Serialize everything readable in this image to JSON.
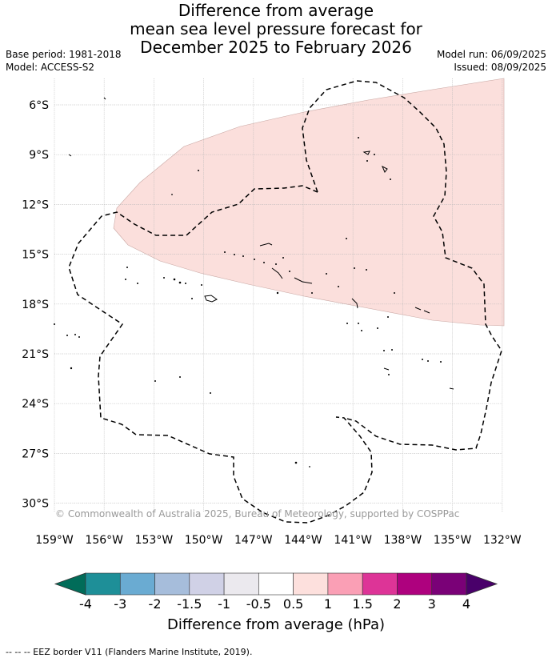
{
  "title": {
    "line1": "Difference from average",
    "line2": "mean sea level pressure forecast for",
    "line3": "December 2025 to February 2026"
  },
  "meta": {
    "base_period": "Base period: 1981-2018",
    "model": "Model: ACCESS-S2",
    "model_run": "Model run: 06/09/2025",
    "issued": "Issued: 08/09/2025"
  },
  "map": {
    "lat_labels": [
      "6°S",
      "9°S",
      "12°S",
      "15°S",
      "18°S",
      "21°S",
      "24°S",
      "27°S",
      "30°S"
    ],
    "lon_labels": [
      "159°W",
      "156°W",
      "153°W",
      "150°W",
      "147°W",
      "144°W",
      "141°W",
      "138°W",
      "135°W",
      "132°W"
    ],
    "copyright": "© Commonwealth of Australia 2025, Bureau of Meteorology, supported by COSPPac",
    "anomaly_region_category": "0.5 to 1",
    "anomaly_color": "#fbdfdc",
    "eez_color": "#000000"
  },
  "colorbar": {
    "title": "Difference from average (hPa)",
    "labels": [
      "-4",
      "-3",
      "-2",
      "-1.5",
      "-1",
      "-0.5",
      "0.5",
      "1",
      "1.5",
      "2",
      "3",
      "4"
    ],
    "colors": [
      "#1e8f98",
      "#6aabd2",
      "#a6bddb",
      "#d0d1e6",
      "#ebe9ee",
      "#ffffff",
      "#fde0dd",
      "#fa9fb5",
      "#dd3497",
      "#ae017e",
      "#7a0177"
    ],
    "low_extend_color": "#016c59",
    "high_extend_color": "#49006a"
  },
  "footer": "--  --  -- EEZ border V11 (Flanders Marine Institute, 2019)."
}
